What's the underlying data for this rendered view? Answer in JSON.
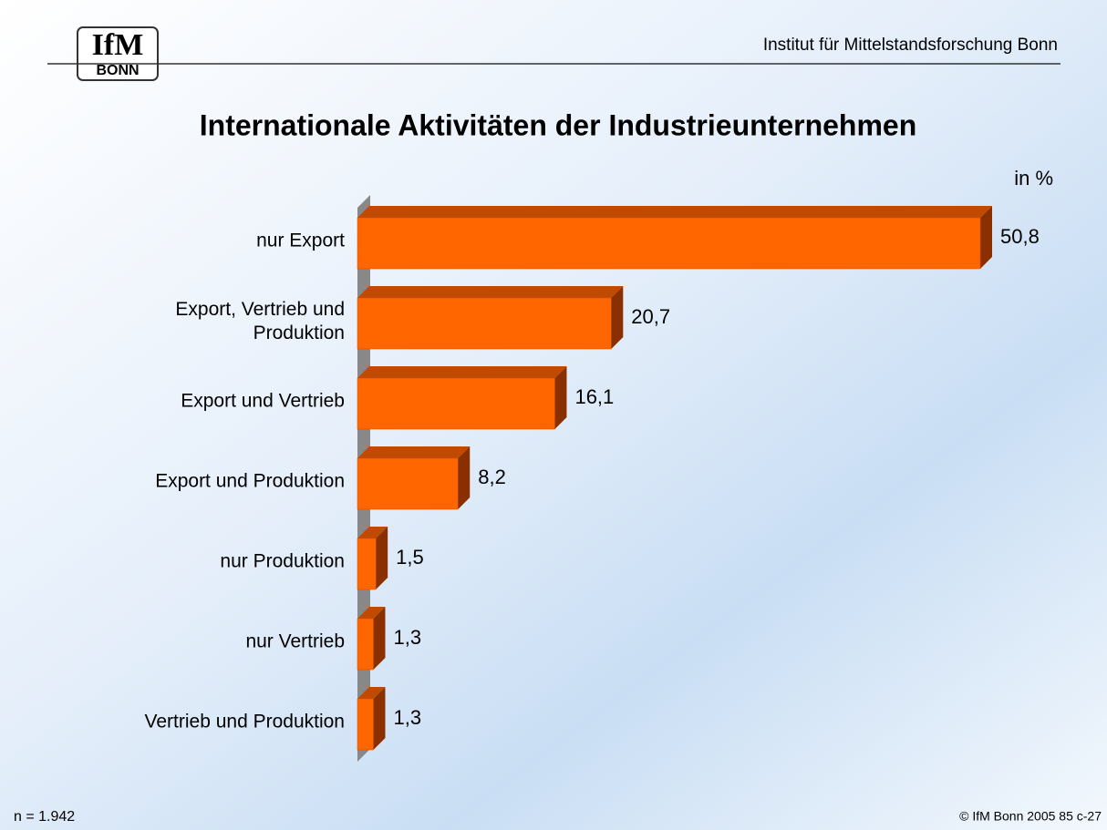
{
  "header": {
    "institute": "Institut für Mittelstandsforschung Bonn",
    "logo_top": "IfM",
    "logo_bottom": "BONN"
  },
  "footer": {
    "sample": "n = 1.942",
    "copyright": "© IfM Bonn 2005  85  c-27"
  },
  "chart_data": {
    "type": "bar3d",
    "orientation": "horizontal",
    "title": "Internationale Aktivitäten der Industrieunternehmen",
    "unit_label": "in %",
    "categories": [
      "nur Export",
      "Export, Vertrieb und Produktion",
      "Export und Vertrieb",
      "Export und Produktion",
      "nur Produktion",
      "nur Vertrieb",
      "Vertrieb und Produktion"
    ],
    "values": [
      50.8,
      20.7,
      16.1,
      8.2,
      1.5,
      1.3,
      1.3
    ],
    "value_labels": [
      "50,8",
      "20,7",
      "16,1",
      "8,2",
      "1,5",
      "1,3",
      "1,3"
    ],
    "color": "#ff6600"
  }
}
